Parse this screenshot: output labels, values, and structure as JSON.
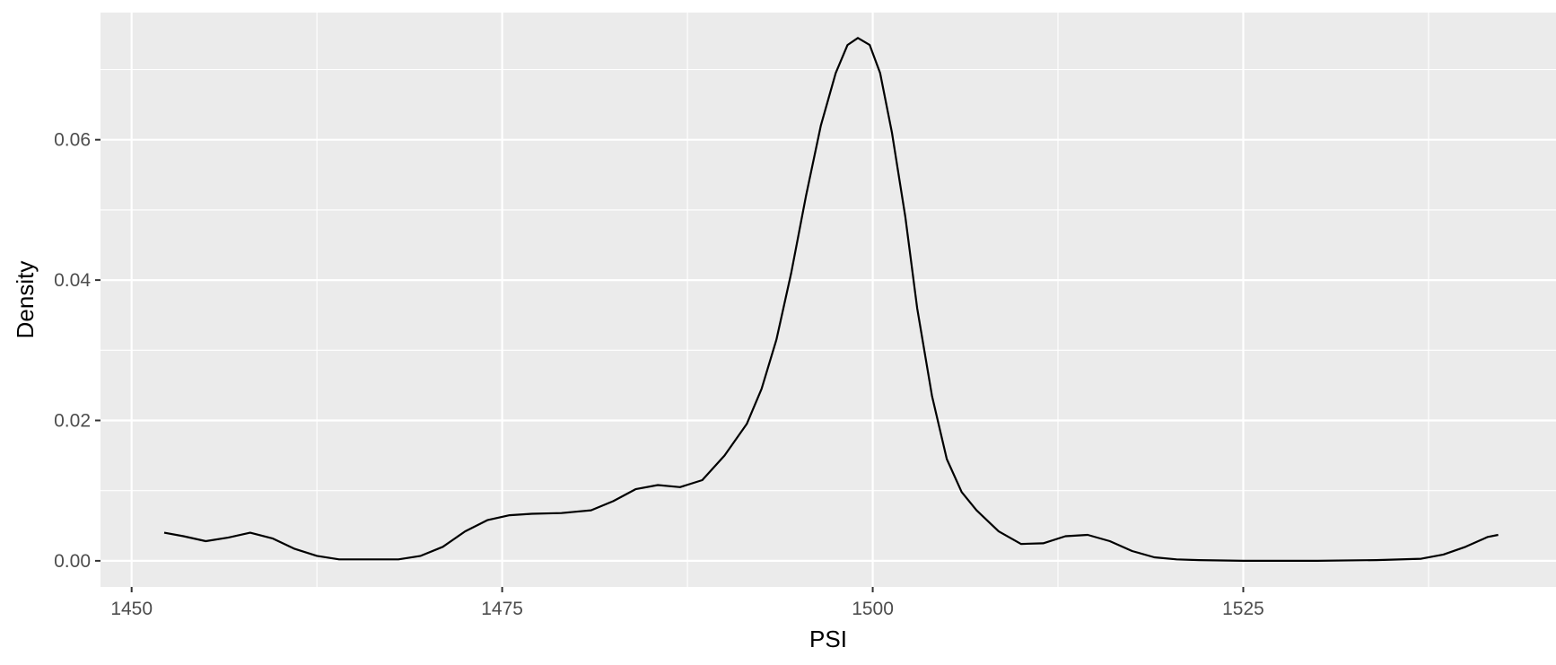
{
  "chart_data": {
    "type": "line",
    "title": "",
    "xlabel": "PSI",
    "ylabel": "Density",
    "xlim": [
      1447.9,
      1546.1
    ],
    "ylim": [
      -0.00372,
      0.07812
    ],
    "x_ticks": {
      "major": [
        1450,
        1475,
        1500,
        1525
      ],
      "minor": [
        1462.5,
        1487.5,
        1512.5,
        1537.5
      ]
    },
    "y_ticks": {
      "major": [
        0,
        0.02,
        0.04,
        0.06
      ],
      "minor": [
        0.01,
        0.03,
        0.05,
        0.07
      ]
    },
    "x_tick_labels": [
      "1450",
      "1475",
      "1500",
      "1525"
    ],
    "y_tick_labels": [
      "0.00",
      "0.02",
      "0.04",
      "0.06"
    ],
    "grid": true,
    "legend": "none",
    "colors": {
      "panel": "#ebebeb",
      "grid": "#ffffff",
      "line": "#000000",
      "tick_text": "#4d4d4d",
      "tick_mark": "#333333"
    },
    "series": [
      {
        "x": [
          1452.2,
          1453.5,
          1455,
          1456.5,
          1458,
          1459.5,
          1461,
          1462.5,
          1464,
          1466,
          1468,
          1469.5,
          1471,
          1472.5,
          1474,
          1475.5,
          1477,
          1479,
          1481,
          1482.5,
          1484,
          1485.5,
          1487,
          1488.5,
          1490,
          1491.5,
          1492.5,
          1493.5,
          1494.5,
          1495.5,
          1496.5,
          1497.5,
          1498.3,
          1499,
          1499.8,
          1500.5,
          1501.3,
          1502.2,
          1503,
          1504,
          1505,
          1506,
          1507,
          1508.5,
          1510,
          1511.5,
          1513,
          1514.5,
          1516,
          1517.5,
          1519,
          1520.5,
          1522,
          1525,
          1530,
          1534,
          1537,
          1538.5,
          1540,
          1541.5,
          1542.2
        ],
        "y": [
          0.004,
          0.0035,
          0.0028,
          0.0033,
          0.004,
          0.0032,
          0.0017,
          0.0007,
          0.0002,
          0.0002,
          0.0002,
          0.0007,
          0.002,
          0.0042,
          0.0058,
          0.0065,
          0.0067,
          0.0068,
          0.0072,
          0.0085,
          0.0102,
          0.0108,
          0.0105,
          0.0115,
          0.015,
          0.0195,
          0.0245,
          0.0315,
          0.041,
          0.052,
          0.062,
          0.0695,
          0.0735,
          0.0745,
          0.0735,
          0.0695,
          0.061,
          0.049,
          0.036,
          0.0235,
          0.0145,
          0.0098,
          0.0072,
          0.0042,
          0.0024,
          0.0025,
          0.0035,
          0.0037,
          0.0028,
          0.0014,
          0.0005,
          0.0002,
          0.0001,
          0,
          0,
          0.0001,
          0.0003,
          0.0009,
          0.002,
          0.0034,
          0.0037
        ]
      }
    ]
  }
}
